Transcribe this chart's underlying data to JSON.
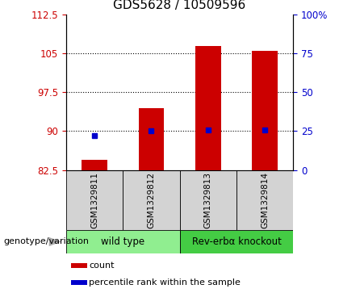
{
  "title": "GDS5628 / 10509596",
  "samples": [
    "GSM1329811",
    "GSM1329812",
    "GSM1329813",
    "GSM1329814"
  ],
  "bar_values": [
    84.5,
    94.5,
    106.5,
    105.5
  ],
  "percentile_values": [
    22,
    25,
    26,
    26
  ],
  "bar_bottom": 82.5,
  "ylim_left": [
    82.5,
    112.5
  ],
  "ylim_right": [
    0,
    100
  ],
  "yticks_left": [
    82.5,
    90,
    97.5,
    105,
    112.5
  ],
  "yticks_right": [
    0,
    25,
    50,
    75,
    100
  ],
  "ytick_labels_left": [
    "82.5",
    "90",
    "97.5",
    "105",
    "112.5"
  ],
  "ytick_labels_right": [
    "0",
    "25",
    "50",
    "75",
    "100%"
  ],
  "hlines": [
    90,
    97.5,
    105
  ],
  "bar_color": "#cc0000",
  "percentile_color": "#0000cc",
  "left_tick_color": "#cc0000",
  "right_tick_color": "#0000cc",
  "groups": [
    {
      "label": "wild type",
      "samples": [
        0,
        1
      ],
      "color": "#90ee90"
    },
    {
      "label": "Rev-erbα knockout",
      "samples": [
        2,
        3
      ],
      "color": "#44cc44"
    }
  ],
  "genotype_label": "genotype/variation",
  "legend_items": [
    {
      "color": "#cc0000",
      "label": "count"
    },
    {
      "color": "#0000cc",
      "label": "percentile rank within the sample"
    }
  ],
  "bar_width": 0.45,
  "background_color": "#ffffff",
  "plot_bg_color": "#ffffff",
  "sample_bg_color": "#d3d3d3",
  "title_fontsize": 11,
  "tick_fontsize": 8.5,
  "legend_fontsize": 8,
  "sample_fontsize": 7.5,
  "group_fontsize": 8.5
}
